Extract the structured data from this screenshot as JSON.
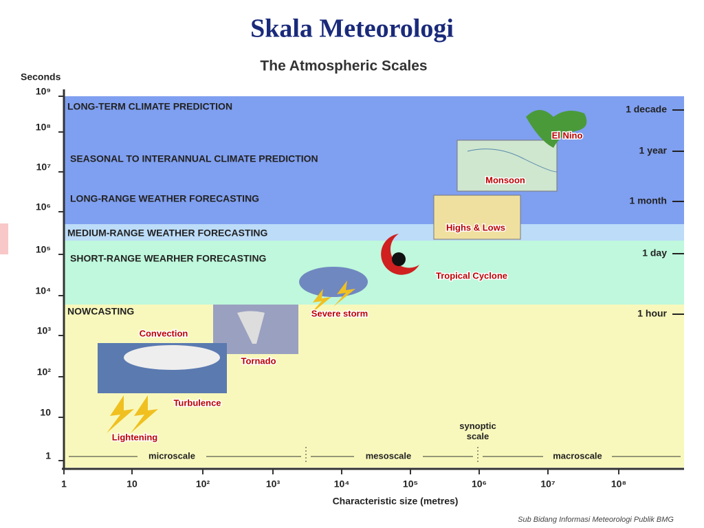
{
  "header": {
    "title": "Skala Meteorologi",
    "subtitle": "The Atmospheric Scales"
  },
  "y_axis": {
    "label": "Seconds",
    "ticks": [
      "10⁹",
      "10⁸",
      "10⁷",
      "10⁶",
      "10⁵",
      "10⁴",
      "10³",
      "10²",
      "10",
      "1"
    ]
  },
  "x_axis": {
    "label": "Characteristic size (metres)",
    "ticks": [
      "1",
      "10",
      "10²",
      "10³",
      "10⁴",
      "10⁵",
      "10⁶",
      "10⁷",
      "10⁸"
    ]
  },
  "bands": [
    "LONG-TERM CLIMATE PREDICTION",
    "SEASONAL TO INTERANNUAL CLIMATE PREDICTION",
    "LONG-RANGE WEATHER FORECASTING",
    "MEDIUM-RANGE WEATHER FORECASTING",
    "SHORT-RANGE WEARHER FORECASTING",
    "NOWCASTING"
  ],
  "time_marks": [
    "1 decade",
    "1 year",
    "1 month",
    "1 day",
    "1 hour"
  ],
  "phenomena": [
    "El Nino",
    "Monsoon",
    "Highs & Lows",
    "Tropical Cyclone",
    "Severe storm",
    "Tornado",
    "Convection",
    "Turbulence",
    "Lightening"
  ],
  "scales": {
    "synoptic": "synoptic\nscale",
    "items": [
      "microscale",
      "mesoscale",
      "macroscale"
    ]
  },
  "footer": "Sub Bidang Informasi Meteorologi Publik BMG"
}
